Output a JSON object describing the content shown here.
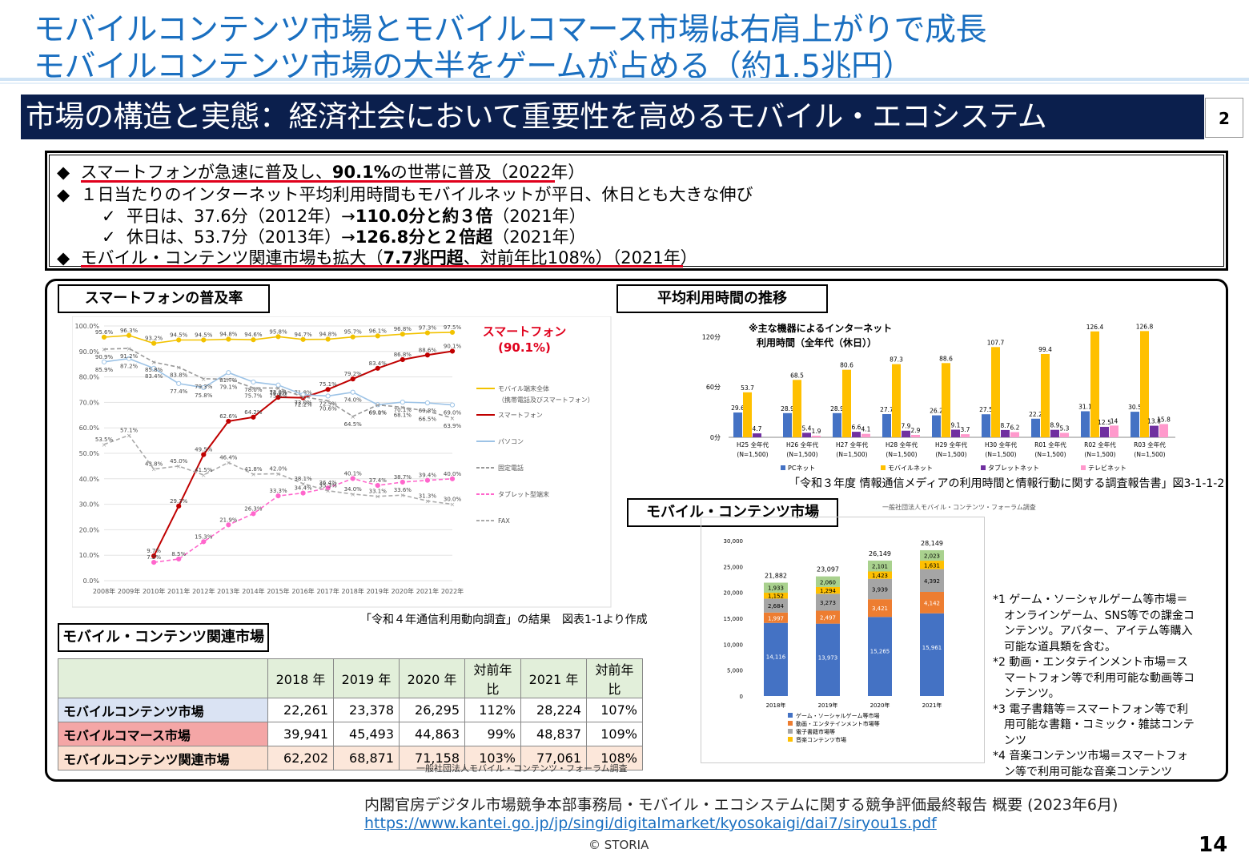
{
  "header": {
    "title_line1": "モバイルコンテンツ市場とモバイルコマース市場は右肩上がりで成長",
    "title_line2": "モバイルコンテンツ市場の大半をゲームが占める（約1.5兆円）"
  },
  "banner": {
    "text": "市場の構造と実態：経済社会において重要性を高めるモバイル・エコシステム",
    "page": "2"
  },
  "bullets": {
    "b1_pre": "スマートフォンが急速に普及し、",
    "b1_bold": "90.1%",
    "b1_post": "の世帯に普及（2022年）",
    "b2": "１日当たりのインターネット平均利用時間もモバイルネットが平日、休日とも大きな伸び",
    "b3_pre": "平日は、37.6分（2012年）→",
    "b3_bold": "110.0分と約３倍",
    "b3_post": "（2021年）",
    "b4_pre": "休日は、53.7分（2013年）→",
    "b4_bold": "126.8分と２倍超",
    "b4_post": "（2021年）",
    "b5_pre": "モバイル・コンテンツ関連市場も拡大（",
    "b5_bold": "7.7兆円超",
    "b5_post": "、対前年比108%）（2021年）",
    "diamond": "◆",
    "check": "✓"
  },
  "labels": {
    "smartphone": "スマートフォンの普及率",
    "time": "平均利用時間の推移",
    "mobile_contents": "モバイル・コンテンツ市場",
    "related_market": "モバイル・コンテンツ関連市場"
  },
  "chart_data": [
    {
      "type": "line",
      "x": [
        "2008年",
        "2009年",
        "2010年",
        "2011年",
        "2012年",
        "2013年",
        "2014年",
        "2015年",
        "2016年",
        "2017年",
        "2018年",
        "2019年",
        "2020年",
        "2021年",
        "2022年"
      ],
      "ylim": [
        0,
        100
      ],
      "yticks": [
        "0.0%",
        "10.0%",
        "20.0%",
        "30.0%",
        "40.0%",
        "50.0%",
        "60.0%",
        "70.0%",
        "80.0%",
        "90.0%",
        "100.0%"
      ],
      "annotation": "スマートフォン",
      "annotation2": "(90.1%)",
      "source": "「令和４年通信利用動向調査」の結果　図表1-1より作成",
      "series": [
        {
          "name": "モバイル端末全体",
          "name2": "（携帯電話及びスマートフォン）",
          "color": "#f2c200",
          "values": [
            95.6,
            96.3,
            93.2,
            94.5,
            94.5,
            94.8,
            94.6,
            95.8,
            94.7,
            94.8,
            95.7,
            96.1,
            96.8,
            97.3,
            97.5
          ]
        },
        {
          "name": "スマートフォン",
          "color": "#c00000",
          "values": [
            null,
            null,
            9.7,
            29.3,
            49.5,
            62.6,
            64.2,
            72.0,
            71.8,
            75.1,
            79.2,
            83.4,
            86.8,
            88.6,
            90.1
          ]
        },
        {
          "name": "パソコン",
          "color": "#9dc3e6",
          "values": [
            85.9,
            87.2,
            83.4,
            77.4,
            75.8,
            81.7,
            78.0,
            76.8,
            73.0,
            72.5,
            74.0,
            69.1,
            70.1,
            69.8,
            69.0
          ]
        },
        {
          "name": "固定電話",
          "color": "#999999",
          "values": [
            90.9,
            91.2,
            85.8,
            83.8,
            79.3,
            79.1,
            75.7,
            75.6,
            72.2,
            70.6,
            64.5,
            69.0,
            68.1,
            66.5,
            63.9
          ]
        },
        {
          "name": "タブレット型端末",
          "color": "#ff66cc",
          "values": [
            null,
            null,
            7.2,
            8.5,
            15.3,
            21.9,
            26.3,
            33.3,
            34.4,
            36.4,
            40.1,
            37.4,
            38.7,
            39.4,
            40.0
          ]
        },
        {
          "name": "FAX",
          "color": "#aaaaaa",
          "values": [
            53.5,
            57.1,
            43.8,
            45.0,
            41.5,
            46.4,
            41.8,
            42.0,
            38.1,
            35.3,
            34.0,
            33.1,
            33.6,
            31.3,
            30.0
          ]
        }
      ]
    },
    {
      "type": "bar",
      "categories": [
        "H25 全年代",
        "H26 全年代",
        "H27 全年代",
        "H28 全年代",
        "H29 全年代",
        "H30 全年代",
        "R01 全年代",
        "R02 全年代",
        "R03 全年代"
      ],
      "subcat": "(N=1,500)",
      "ylim": [
        0,
        130
      ],
      "yticks": [
        "0分",
        "60分",
        "120分"
      ],
      "note1": "※主な機器によるインターネット",
      "note2": "利用時間（全年代（休日））",
      "source": "「令和３年度 情報通信メディアの利用時間と情報行動に関する調査報告書」図3-1-1-2",
      "series": [
        {
          "name": "PCネット",
          "color": "#4472c4",
          "values": [
            29.6,
            28.9,
            28.9,
            27.7,
            26.2,
            27.5,
            22.2,
            31.1,
            30.5
          ]
        },
        {
          "name": "モバイルネット",
          "color": "#ffc000",
          "values": [
            53.7,
            68.5,
            80.6,
            87.3,
            88.6,
            107.7,
            99.4,
            126.4,
            126.8
          ]
        },
        {
          "name": "タブレットネット",
          "color": "#7030a0",
          "values": [
            4.7,
            5.4,
            6.6,
            7.9,
            9.1,
            8.7,
            8.9,
            12.5,
            13.8
          ]
        },
        {
          "name": "テレビネット",
          "color": "#ff99cc",
          "values": [
            null,
            1.9,
            4.1,
            2.9,
            3.7,
            6.2,
            5.3,
            14.0,
            15.8
          ]
        }
      ]
    },
    {
      "type": "bar",
      "stacked": true,
      "categories": [
        "2018年",
        "2019年",
        "2020年",
        "2021年"
      ],
      "ylim": [
        0,
        30000
      ],
      "yticks": [
        "0",
        "5,000",
        "10,000",
        "15,000",
        "20,000",
        "25,000",
        "30,000"
      ],
      "totals": [
        "21,882",
        "23,097",
        "26,149",
        "28,149"
      ],
      "source": "一般社団法人モバイル・コンテンツ・フォーラム調査",
      "series": [
        {
          "name": "ゲーム・ソーシャルゲーム等市場",
          "color": "#4472c4",
          "values": [
            14116,
            13973,
            15265,
            15961
          ],
          "labels": [
            "14,116",
            "13,973",
            "15,265",
            "15,961"
          ]
        },
        {
          "name": "動画・エンタテインメント市場等",
          "color": "#ed7d31",
          "values": [
            1997,
            2497,
            3421,
            4142
          ],
          "labels": [
            "1,997",
            "2,497",
            "3,421",
            "4,142"
          ]
        },
        {
          "name": "電子書籍市場等",
          "color": "#a5a5a5",
          "values": [
            2684,
            3273,
            3939,
            4392
          ],
          "labels": [
            "2,684",
            "3,273",
            "3,939",
            "4,392"
          ]
        },
        {
          "name": "音楽コンテンツ市場",
          "color": "#ffc000",
          "values": [
            1152,
            1294,
            1423,
            1631
          ],
          "labels": [
            "1,152",
            "1,294",
            "1,423",
            "1,631"
          ]
        },
        {
          "name": "",
          "color": "#a9d18e",
          "values": [
            1933,
            2060,
            2101,
            2023
          ],
          "labels": [
            "1,933",
            "2,060",
            "2,101",
            "2,023"
          ]
        }
      ]
    },
    {
      "type": "table",
      "headers": [
        "",
        "2018 年",
        "2019 年",
        "2020 年",
        "対前年比",
        "2021 年",
        "対前年比"
      ],
      "rows": [
        {
          "label": "モバイルコンテンツ市場",
          "color": "#dae3f3",
          "cells": [
            "22,261",
            "23,378",
            "26,295",
            "112%",
            "28,224",
            "107%"
          ]
        },
        {
          "label": "モバイルコマース市場",
          "color": "#f4a6a6",
          "cells": [
            "39,941",
            "45,493",
            "44,863",
            "99%",
            "48,837",
            "109%"
          ]
        },
        {
          "label": "モバイルコンテンツ関連市場",
          "color": "#fbe0d0",
          "cells": [
            "62,202",
            "68,871",
            "71,158",
            "103%",
            "77,061",
            "108%"
          ]
        }
      ],
      "source": "一般社団法人モバイル・コンテンツ・フォーラム調査"
    }
  ],
  "footnotes": [
    "*1 ゲーム・ソーシャルゲーム等市場＝",
    "　オンラインゲーム、SNS等での課金コ",
    "　ンテンツ。アバター、アイテム等購入",
    "　可能な道具類を含む。",
    "*2 動画・エンタテインメント市場＝ス",
    "　マートフォン等で利用可能な動画等コ",
    "　ンテンツ。",
    "*3 電子書籍等＝スマートフォン等で利",
    "　用可能な書籍・コミック・雑誌コンテ",
    "　ンツ",
    "*4 音楽コンテンツ市場＝スマートフォ",
    "　ン等で利用可能な音楽コンテンツ"
  ],
  "footer": {
    "source": "内閣官房デジタル市場競争本部事務局・モバイル・エコシステムに関する競争評価最終報告 概要 (2023年6月)",
    "url": "https://www.kantei.go.jp/jp/singi/digitalmarket/kyosokaigi/dai7/siryou1s.pdf",
    "copyright": "© STORIA",
    "page": "14"
  }
}
